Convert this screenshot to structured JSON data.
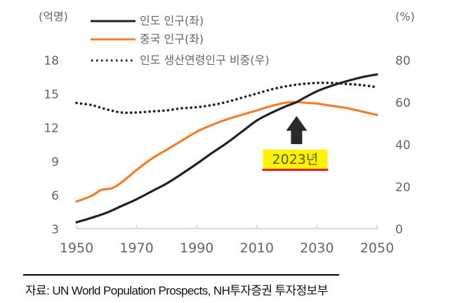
{
  "chart_data": {
    "type": "line",
    "title": "",
    "left_unit_label": "(억명)",
    "right_unit_label": "(%)",
    "xlabel": "",
    "ylabel_left": "(억명)",
    "ylabel_right": "(%)",
    "x_ticks": [
      1950,
      1970,
      1990,
      2010,
      2030,
      2050
    ],
    "xlim": [
      1950,
      2050
    ],
    "ylim_left": [
      3,
      18
    ],
    "y_ticks_left": [
      3,
      6,
      9,
      12,
      15,
      18
    ],
    "ylim_right": [
      0,
      80
    ],
    "y_ticks_right": [
      0,
      20,
      40,
      60,
      80
    ],
    "grid": false,
    "legend_position": "top-center",
    "series": [
      {
        "name": "인도 인구(좌)",
        "axis": "left",
        "style": "solid",
        "color": "#222222",
        "x": [
          1950,
          1955,
          1960,
          1965,
          1970,
          1975,
          1980,
          1985,
          1990,
          1995,
          2000,
          2005,
          2010,
          2015,
          2020,
          2023,
          2025,
          2030,
          2035,
          2040,
          2045,
          2050
        ],
        "values": [
          3.55,
          3.95,
          4.4,
          5.0,
          5.6,
          6.3,
          7.0,
          7.85,
          8.75,
          9.7,
          10.6,
          11.6,
          12.6,
          13.3,
          13.9,
          14.2,
          14.5,
          15.2,
          15.7,
          16.1,
          16.45,
          16.7
        ]
      },
      {
        "name": "중국 인구(좌)",
        "axis": "left",
        "style": "solid",
        "color": "#F07F2D",
        "x": [
          1950,
          1955,
          1958,
          1960,
          1962,
          1965,
          1970,
          1975,
          1980,
          1985,
          1990,
          1995,
          2000,
          2005,
          2010,
          2015,
          2020,
          2023,
          2025,
          2030,
          2035,
          2040,
          2045,
          2050
        ],
        "values": [
          5.4,
          5.9,
          6.4,
          6.5,
          6.6,
          7.1,
          8.2,
          9.2,
          10.0,
          10.8,
          11.6,
          12.2,
          12.7,
          13.1,
          13.5,
          13.9,
          14.2,
          14.25,
          14.2,
          14.1,
          13.9,
          13.7,
          13.4,
          13.1
        ]
      },
      {
        "name": "인도 생산연령인구 비중(우)",
        "axis": "right",
        "style": "dotted",
        "color": "#222222",
        "x": [
          1950,
          1955,
          1960,
          1965,
          1970,
          1975,
          1980,
          1985,
          1990,
          1995,
          2000,
          2005,
          2010,
          2015,
          2020,
          2025,
          2030,
          2035,
          2040,
          2045,
          2050
        ],
        "values": [
          59.5,
          58.5,
          56.5,
          55.0,
          55.0,
          55.5,
          56.0,
          57.0,
          57.5,
          58.5,
          60.0,
          62.0,
          64.0,
          66.0,
          67.5,
          68.5,
          69.0,
          69.0,
          68.5,
          68.0,
          67.0
        ]
      }
    ],
    "annotations": [
      {
        "text": "2023년",
        "x": 2023,
        "type": "arrow-up-label",
        "highlight_color": "#FFF200",
        "underline_color": "#E02020"
      }
    ]
  },
  "source": "자료: UN World Population Prospects, NH투자증권 투자정보부"
}
